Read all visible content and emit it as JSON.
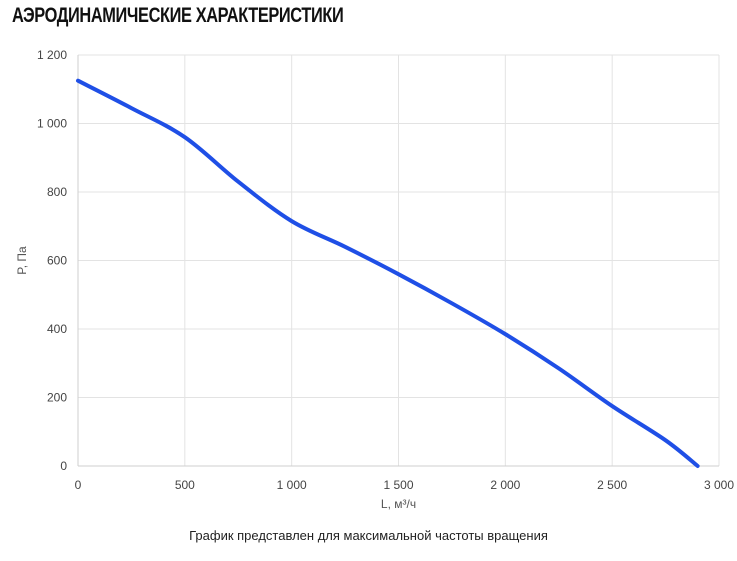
{
  "header": {
    "title": "АЭРОДИНАМИЧЕСКИЕ ХАРАКТЕРИСТИКИ"
  },
  "caption": "График представлен для максимальной частоты вращения",
  "chart_data": {
    "type": "line",
    "xlabel": "L, м³/ч",
    "ylabel": "P, Па",
    "xlim": [
      0,
      3000
    ],
    "ylim": [
      0,
      1200
    ],
    "x_ticks": [
      0,
      500,
      1000,
      1500,
      2000,
      2500,
      3000
    ],
    "x_tick_labels": [
      "0",
      "500",
      "1 000",
      "1 500",
      "2 000",
      "2 500",
      "3 000"
    ],
    "y_ticks": [
      0,
      200,
      400,
      600,
      800,
      1000,
      1200
    ],
    "y_tick_labels": [
      "0",
      "200",
      "400",
      "600",
      "800",
      "1 000",
      "1 200"
    ],
    "grid": true,
    "legend": "none",
    "series": [
      {
        "color": "#1f4fe6",
        "x": [
          0,
          250,
          500,
          750,
          1000,
          1250,
          1500,
          1750,
          2000,
          2250,
          2500,
          2750,
          2900
        ],
        "y": [
          1125,
          1045,
          960,
          830,
          715,
          640,
          560,
          475,
          385,
          285,
          175,
          75,
          0
        ]
      }
    ]
  }
}
